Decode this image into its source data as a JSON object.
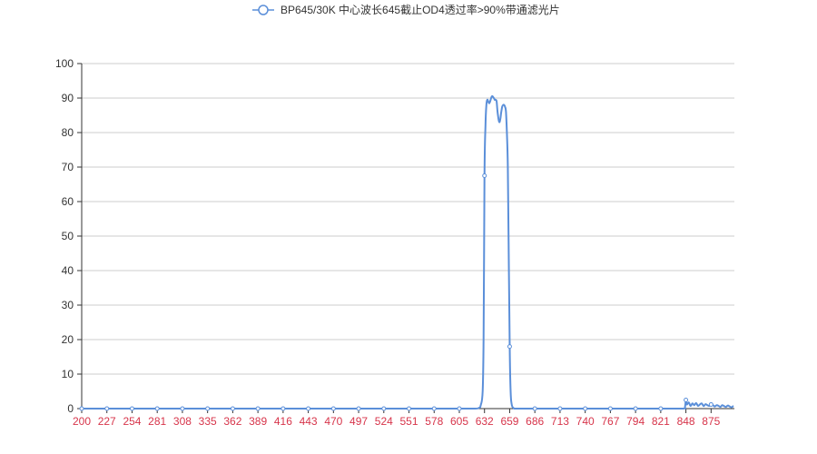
{
  "chart_data": {
    "type": "line",
    "title": "",
    "xlabel": "",
    "ylabel": "",
    "legend_position": "top-center",
    "grid": true,
    "ylim": [
      0,
      100
    ],
    "yticks": [
      0,
      10,
      20,
      30,
      40,
      50,
      60,
      70,
      80,
      90,
      100
    ],
    "xlim": [
      200,
      900
    ],
    "xticks": [
      200,
      227,
      254,
      281,
      308,
      335,
      362,
      389,
      416,
      443,
      470,
      497,
      524,
      551,
      578,
      605,
      632,
      659,
      686,
      713,
      740,
      767,
      794,
      821,
      848,
      875
    ],
    "colors": {
      "series": "#5b8fd9",
      "grid": "#cccccc",
      "axis": "#333333",
      "xtick_label": "#d7354b",
      "ytick_label": "#333333"
    },
    "series": [
      {
        "name": "BP645/30K 中心波长645截止OD4透过率>90%带通滤光片",
        "x": [
          200,
          227,
          254,
          281,
          308,
          335,
          362,
          389,
          416,
          443,
          470,
          497,
          524,
          551,
          578,
          605,
          622,
          626,
          628,
          630,
          631,
          632,
          633,
          634,
          635,
          636,
          637,
          638,
          640,
          642,
          643,
          644,
          645,
          646,
          647,
          648,
          649,
          650,
          651,
          652,
          653,
          654,
          655,
          656,
          657,
          658,
          659,
          660,
          661,
          662,
          663,
          664,
          666,
          670,
          686,
          713,
          740,
          767,
          794,
          821,
          845,
          847,
          848,
          849,
          851,
          853,
          855,
          857,
          859,
          861,
          863,
          865,
          867,
          869,
          871,
          873,
          875,
          877,
          879,
          881,
          883,
          885,
          887,
          889,
          891,
          893,
          895,
          897,
          899
        ],
        "y": [
          0,
          0,
          0,
          0,
          0,
          0,
          0,
          0,
          0,
          0,
          0,
          0,
          0,
          0,
          0,
          0,
          0,
          0.2,
          1,
          5,
          20,
          67.5,
          82,
          88,
          89.5,
          89,
          88.5,
          89,
          90.5,
          90,
          89.5,
          89.5,
          89,
          86,
          84,
          83,
          84,
          86,
          87.5,
          88,
          88,
          87.5,
          86,
          80,
          70.5,
          45,
          18,
          5,
          1.5,
          0.5,
          0.2,
          0,
          0,
          0,
          0,
          0,
          0,
          0,
          0,
          0,
          0,
          0.5,
          2.5,
          1.2,
          1.8,
          0.8,
          1.5,
          1,
          1.6,
          0.8,
          1.2,
          1.5,
          0.7,
          1.3,
          1,
          0.8,
          1.2,
          1,
          0.6,
          1,
          0.8,
          0.5,
          1,
          0.7,
          0.5,
          0.9,
          0.6,
          0.4,
          0.8
        ],
        "markers_x": [
          200,
          227,
          254,
          281,
          308,
          335,
          362,
          389,
          416,
          443,
          470,
          497,
          524,
          551,
          578,
          605,
          632,
          659,
          686,
          713,
          740,
          767,
          794,
          821,
          848,
          875
        ]
      }
    ]
  }
}
